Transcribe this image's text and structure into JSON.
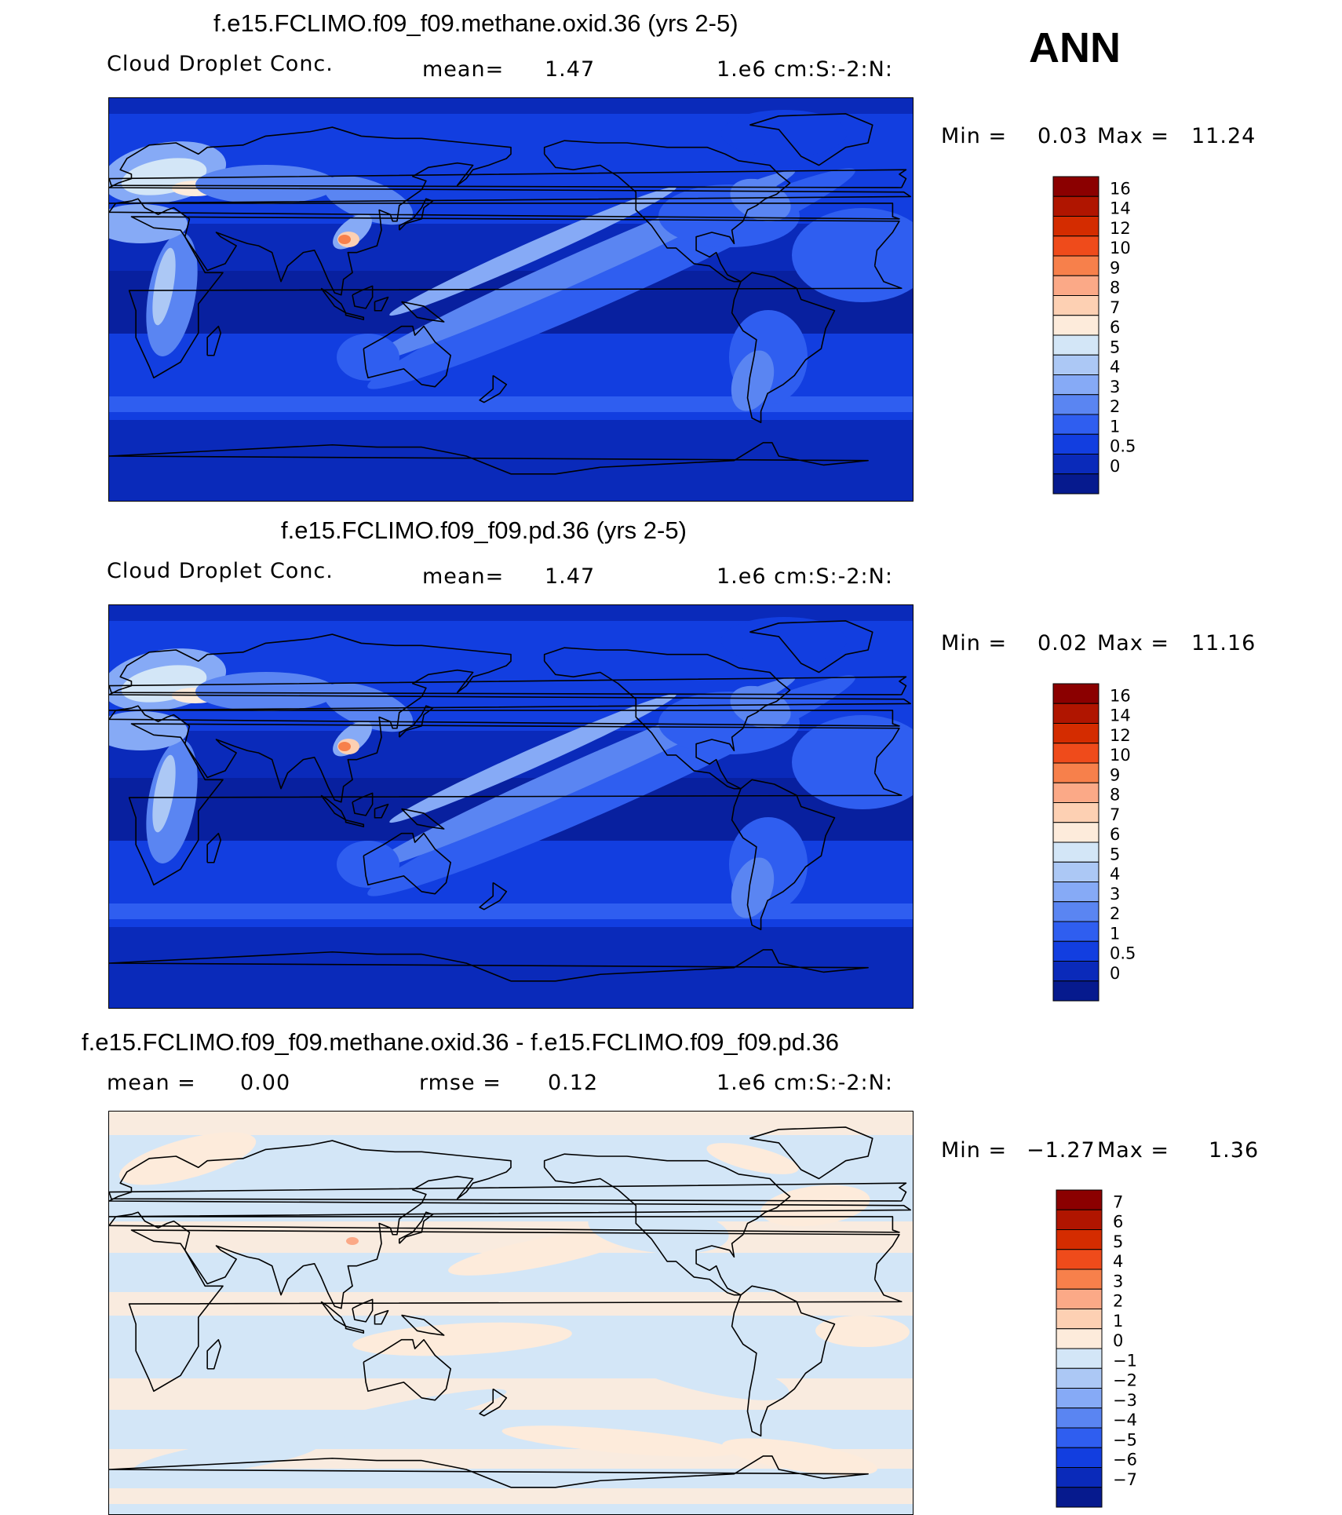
{
  "season_label": "ANN",
  "panels": [
    {
      "title": "f.e15.FCLIMO.f09_f09.methane.oxid.36 (yrs 2-5)",
      "variable": "Cloud Droplet Conc.",
      "stat1_label": "mean=",
      "stat1_value": "1.47",
      "units": "1.e6 cm:S:-2:N:",
      "min_label": "Min =",
      "min_value": "0.03",
      "max_label": "Max =",
      "max_value": "11.24",
      "colorbar_levels": [
        "16",
        "14",
        "12",
        "10",
        "9",
        "8",
        "7",
        "6",
        "5",
        "4",
        "3",
        "2",
        "1",
        "0.5",
        "0"
      ],
      "colorbar_colors": [
        "#8b0000",
        "#b01500",
        "#d42c00",
        "#ef4b1b",
        "#f7804b",
        "#fba987",
        "#fdd0b3",
        "#fdebdb",
        "#d3e6f7",
        "#acc8f5",
        "#86aaf6",
        "#5a85f2",
        "#2f5ef0",
        "#123ee0",
        "#0a2aba",
        "#061a8e"
      ],
      "field": "base"
    },
    {
      "title": "f.e15.FCLIMO.f09_f09.pd.36 (yrs 2-5)",
      "variable": "Cloud Droplet Conc.",
      "stat1_label": "mean=",
      "stat1_value": "1.47",
      "units": "1.e6 cm:S:-2:N:",
      "min_label": "Min =",
      "min_value": "0.02",
      "max_label": "Max =",
      "max_value": "11.16",
      "colorbar_levels": [
        "16",
        "14",
        "12",
        "10",
        "9",
        "8",
        "7",
        "6",
        "5",
        "4",
        "3",
        "2",
        "1",
        "0.5",
        "0"
      ],
      "colorbar_colors": [
        "#8b0000",
        "#b01500",
        "#d42c00",
        "#ef4b1b",
        "#f7804b",
        "#fba987",
        "#fdd0b3",
        "#fdebdb",
        "#d3e6f7",
        "#acc8f5",
        "#86aaf6",
        "#5a85f2",
        "#2f5ef0",
        "#123ee0",
        "#0a2aba",
        "#061a8e"
      ],
      "field": "base"
    },
    {
      "title": "f.e15.FCLIMO.f09_f09.methane.oxid.36 - f.e15.FCLIMO.f09_f09.pd.36",
      "variable": "",
      "stat1_label": "mean =",
      "stat1_value": "0.00",
      "stat2_label": "rmse =",
      "stat2_value": "0.12",
      "units": "1.e6 cm:S:-2:N:",
      "min_label": "Min =",
      "min_value": "−1.27",
      "max_label": "Max =",
      "max_value": "1.36",
      "colorbar_levels": [
        "7",
        "6",
        "5",
        "4",
        "3",
        "2",
        "1",
        "0",
        "−1",
        "−2",
        "−3",
        "−4",
        "−5",
        "−6",
        "−7"
      ],
      "colorbar_colors": [
        "#8b0000",
        "#b01500",
        "#d42c00",
        "#ef4b1b",
        "#f7804b",
        "#fba987",
        "#fdd0b3",
        "#fdebdb",
        "#d3e6f7",
        "#acc8f5",
        "#86aaf6",
        "#5a85f2",
        "#2f5ef0",
        "#123ee0",
        "#0a2aba",
        "#061a8e"
      ],
      "field": "diff"
    }
  ]
}
